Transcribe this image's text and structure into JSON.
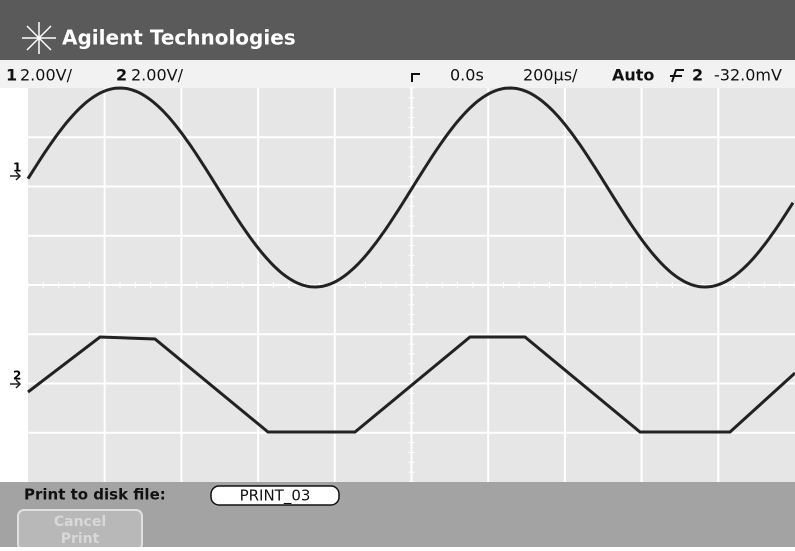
{
  "header": {
    "brand": "Agilent Technologies"
  },
  "status": {
    "ch1_label": "1",
    "ch1_scale": "2.00V/",
    "ch2_label": "2",
    "ch2_scale": "2.00V/",
    "delay": "0.0s",
    "timebase": "200µs/",
    "mode": "Auto",
    "trigger_source": "2",
    "trigger_level": "-32.0mV"
  },
  "markers": [
    "1",
    "2"
  ],
  "footer": {
    "print_label": "Print to disk file:",
    "filename": "PRINT_03",
    "button_lines": [
      "Cancel",
      "Print"
    ]
  }
}
